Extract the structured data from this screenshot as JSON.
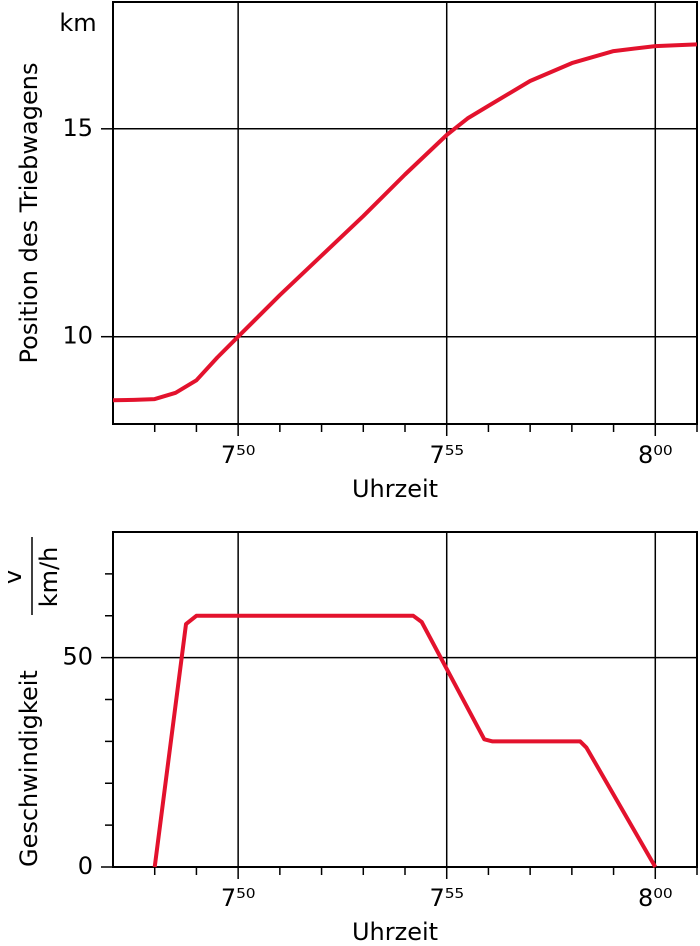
{
  "chart_data": [
    {
      "type": "line",
      "ylabel": "Position des Triebwagens",
      "yunit": "km",
      "xlabel": "Uhrzeit",
      "color": "#e3122d",
      "x": [
        467,
        467.5,
        468,
        468.5,
        469,
        469.5,
        470,
        471,
        472,
        473,
        474,
        475,
        475.5,
        476,
        477,
        478,
        479,
        480,
        481
      ],
      "values": [
        8.47,
        8.48,
        8.5,
        8.65,
        8.95,
        9.5,
        10.0,
        11.0,
        11.95,
        12.9,
        13.9,
        14.85,
        15.25,
        15.55,
        16.15,
        16.58,
        16.87,
        16.99,
        17.03
      ],
      "xlim": [
        467,
        481
      ],
      "xticks": [
        {
          "value": 470,
          "label": "7⁵⁰"
        },
        {
          "value": 475,
          "label": "7⁵⁵"
        },
        {
          "value": 480,
          "label": "8⁰⁰"
        }
      ],
      "xminorticks": [
        468,
        469,
        471,
        472,
        473,
        474,
        476,
        477,
        478,
        479,
        481
      ],
      "ylim": [
        7.9,
        18.05
      ],
      "yticks": [
        10,
        15
      ],
      "yminorticks": [],
      "grid": true
    },
    {
      "type": "line",
      "ylabel": "Geschwindigkeit",
      "yunit_numerator": "v",
      "yunit_denominator": "km/h",
      "xlabel": "Uhrzeit",
      "color": "#e3122d",
      "x": [
        468,
        468.75,
        469,
        474.2,
        474.4,
        475.9,
        476.1,
        478.2,
        478.35,
        480
      ],
      "values": [
        0,
        58,
        60,
        60,
        58.5,
        30.5,
        30,
        30,
        28.5,
        0
      ],
      "xlim": [
        467,
        481
      ],
      "xticks": [
        {
          "value": 470,
          "label": "7⁵⁰"
        },
        {
          "value": 475,
          "label": "7⁵⁵"
        },
        {
          "value": 480,
          "label": "8⁰⁰"
        }
      ],
      "xminorticks": [
        468,
        469,
        471,
        472,
        473,
        474,
        476,
        477,
        478,
        479,
        481
      ],
      "ylim": [
        0,
        80
      ],
      "yticks": [
        0,
        50
      ],
      "yminorticks": [
        10,
        20,
        30,
        40,
        60,
        70
      ],
      "grid": true
    }
  ]
}
